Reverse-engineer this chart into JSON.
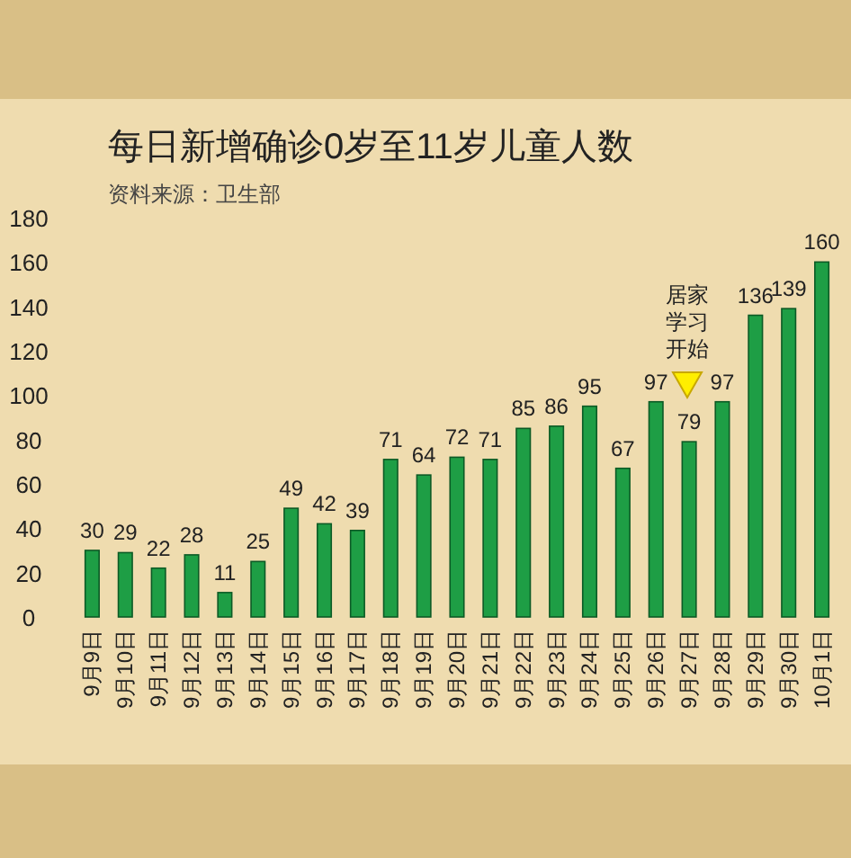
{
  "chart_data": {
    "type": "bar",
    "title": "每日新增确诊0岁至11岁儿童人数",
    "annotations": [
      "资料来源：卫生部",
      "居家学习开始"
    ],
    "categories": [
      "9月9日",
      "9月10日",
      "9月11日",
      "9月12日",
      "9月13日",
      "9月14日",
      "9月15日",
      "9月16日",
      "9月17日",
      "9月18日",
      "9月19日",
      "9月20日",
      "9月21日",
      "9月22日",
      "9月23日",
      "9月24日",
      "9月25日",
      "9月26日",
      "9月27日",
      "9月28日",
      "9月29日",
      "9月30日",
      "10月1日"
    ],
    "values": [
      30,
      29,
      22,
      28,
      11,
      25,
      49,
      42,
      39,
      71,
      64,
      72,
      71,
      85,
      86,
      95,
      67,
      97,
      79,
      97,
      136,
      139,
      160
    ],
    "color": "#1e9e45",
    "ylim": [
      0,
      180
    ],
    "yticks": [
      0,
      20,
      40,
      60,
      80,
      100,
      120,
      140,
      160,
      180
    ],
    "data_labels": true
  }
}
